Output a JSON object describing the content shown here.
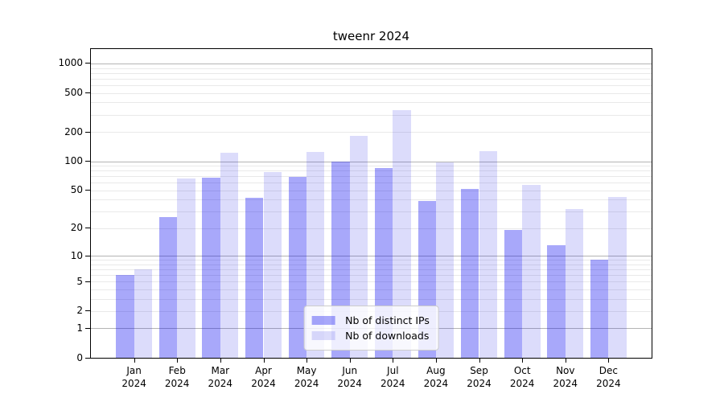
{
  "chart_data": {
    "type": "bar",
    "title": "tweenr 2024",
    "categories": [
      "Jan 2024",
      "Feb 2024",
      "Mar 2024",
      "Apr 2024",
      "May 2024",
      "Jun 2024",
      "Jul 2024",
      "Aug 2024",
      "Sep 2024",
      "Oct 2024",
      "Nov 2024",
      "Dec 2024"
    ],
    "months": [
      "Jan",
      "Feb",
      "Mar",
      "Apr",
      "May",
      "Jun",
      "Jul",
      "Aug",
      "Sep",
      "Oct",
      "Nov",
      "Dec"
    ],
    "year": "2024",
    "series": [
      {
        "key": "distinct-ips",
        "name": "Nb of distinct IPs",
        "color": "rgba(5,5,240,0.35)",
        "color_on_white": "#a8a8fa",
        "values": [
          6,
          26,
          68,
          42,
          69,
          100,
          85,
          39,
          52,
          19,
          13,
          9
        ]
      },
      {
        "key": "downloads",
        "name": "Nb of downloads",
        "color": "rgba(20,20,230,0.15)",
        "color_on_white": "#dcdcfb",
        "values": [
          7,
          66,
          122,
          77,
          124,
          182,
          334,
          97,
          127,
          57,
          32,
          43
        ]
      }
    ],
    "yscale": "log1p",
    "ylim": [
      0,
      1400
    ],
    "xlabel": "",
    "ylabel": "",
    "y_ticks": [
      0,
      1,
      2,
      5,
      10,
      20,
      50,
      100,
      200,
      500,
      1000
    ],
    "y_major_gridlines": [
      1,
      10,
      100,
      1000
    ],
    "y_minor_gridlines": [
      2,
      3,
      4,
      5,
      6,
      7,
      8,
      9,
      20,
      30,
      40,
      50,
      60,
      70,
      80,
      90,
      200,
      300,
      400,
      500,
      600,
      700,
      800,
      900
    ],
    "grid": true,
    "legend_position": "lower center"
  },
  "colors": {
    "background": "#ffffff",
    "spine": "#000000",
    "grid_major": "#b4b4b4",
    "grid_minor": "#e9e9e9",
    "text": "#000000",
    "legend_border": "#cccccc"
  }
}
